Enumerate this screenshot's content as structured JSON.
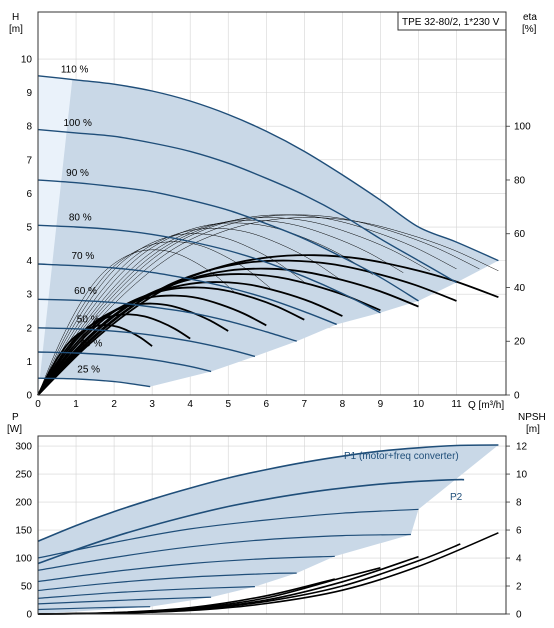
{
  "colors": {
    "curve": "#1f4e79",
    "area": "#c9d8e7",
    "area_light": "#eaf2fa",
    "eta": "#000000",
    "grid": "#d4d4d4",
    "axis": "#333333"
  },
  "chart_data": [
    {
      "type": "line",
      "title": "TPE 32-80/2, 1*230 V",
      "xlabel": "Q [m³/h]",
      "ylabel_left": [
        "H",
        "[m]"
      ],
      "ylabel_right": [
        "eta",
        "[%]"
      ],
      "xlim": [
        0,
        12.3
      ],
      "ylim": [
        0,
        11.4
      ],
      "xticks": [
        0,
        1,
        2,
        3,
        4,
        5,
        6,
        7,
        8,
        9,
        10,
        11
      ],
      "yticks": [
        0,
        1,
        2,
        3,
        4,
        5,
        6,
        7,
        8,
        9,
        10
      ],
      "yticks_right": [
        0,
        20,
        40,
        60,
        80,
        100
      ],
      "yticks_right_limit": [
        0,
        142.5
      ],
      "grid": true,
      "series": [
        {
          "name": "110 %",
          "x": [
            0,
            1,
            2,
            3,
            4,
            5,
            6,
            7,
            8,
            9,
            10,
            11,
            12.1
          ],
          "y": [
            9.5,
            9.38,
            9.25,
            9.05,
            8.75,
            8.35,
            7.85,
            7.25,
            6.55,
            5.8,
            5.0,
            4.55,
            4.0
          ]
        },
        {
          "name": "100 %",
          "x": [
            0,
            1,
            2,
            3,
            4,
            5,
            6,
            7,
            8,
            9,
            10,
            11
          ],
          "y": [
            7.9,
            7.8,
            7.7,
            7.5,
            7.25,
            6.9,
            6.45,
            5.95,
            5.35,
            4.65,
            4.0,
            3.35
          ]
        },
        {
          "name": "90 %",
          "x": [
            0,
            1,
            2,
            3,
            4,
            5,
            6,
            7,
            8,
            9,
            10
          ],
          "y": [
            6.4,
            6.32,
            6.2,
            6.05,
            5.8,
            5.5,
            5.1,
            4.65,
            4.1,
            3.5,
            2.8
          ]
        },
        {
          "name": "80 %",
          "x": [
            0,
            1,
            2,
            3,
            4,
            5,
            6,
            7,
            8,
            9
          ],
          "y": [
            5.05,
            5.0,
            4.92,
            4.78,
            4.57,
            4.3,
            3.95,
            3.52,
            3.02,
            2.45
          ]
        },
        {
          "name": "70 %",
          "x": [
            0,
            1,
            2,
            3,
            4,
            5,
            6,
            7,
            7.85
          ],
          "y": [
            3.9,
            3.85,
            3.78,
            3.65,
            3.45,
            3.2,
            2.88,
            2.48,
            2.1
          ]
        },
        {
          "name": "60 %",
          "x": [
            0,
            1,
            2,
            3,
            4,
            5,
            6,
            6.8
          ],
          "y": [
            2.85,
            2.82,
            2.75,
            2.62,
            2.45,
            2.2,
            1.88,
            1.6
          ]
        },
        {
          "name": "50 %",
          "x": [
            0,
            1,
            2,
            3,
            4,
            5,
            5.7
          ],
          "y": [
            2.0,
            1.97,
            1.9,
            1.78,
            1.6,
            1.36,
            1.15
          ]
        },
        {
          "name": "40 %",
          "x": [
            0,
            1,
            2,
            3,
            4,
            4.55
          ],
          "y": [
            1.28,
            1.25,
            1.18,
            1.05,
            0.85,
            0.7
          ]
        },
        {
          "name": "25 %",
          "x": [
            0,
            1,
            2,
            2.95
          ],
          "y": [
            0.5,
            0.48,
            0.4,
            0.25
          ]
        }
      ],
      "eta_curves": {
        "x_fraction": [
          0,
          0.1,
          0.2,
          0.3,
          0.4,
          0.5,
          0.6,
          0.7,
          0.8,
          0.9,
          1.0
        ],
        "eta_fraction": [
          0,
          0.33,
          0.6,
          0.8,
          0.92,
          0.985,
          1.0,
          0.975,
          0.91,
          0.82,
          0.7
        ],
        "curves": [
          {
            "qmax": 12.1,
            "eta_max": 66,
            "bold": false
          },
          {
            "qmax": 11.6,
            "eta_max": 67,
            "bold": false
          },
          {
            "qmax": 11.0,
            "eta_max": 67,
            "bold": false
          },
          {
            "qmax": 10.3,
            "eta_max": 66,
            "bold": false
          },
          {
            "qmax": 9.6,
            "eta_max": 65,
            "bold": false
          },
          {
            "qmax": 8.8,
            "eta_max": 64,
            "bold": false
          },
          {
            "qmax": 7.9,
            "eta_max": 62,
            "bold": false
          },
          {
            "qmax": 7.0,
            "eta_max": 60,
            "bold": false
          },
          {
            "qmax": 6.1,
            "eta_max": 57,
            "bold": false
          },
          {
            "qmax": 5.2,
            "eta_max": 54,
            "bold": false
          },
          {
            "qmax": 12.1,
            "eta_max": 52,
            "bold": true
          },
          {
            "qmax": 11.0,
            "eta_max": 50,
            "bold": true
          },
          {
            "qmax": 10.0,
            "eta_max": 47,
            "bold": true
          },
          {
            "qmax": 9.0,
            "eta_max": 45,
            "bold": true
          },
          {
            "qmax": 8.0,
            "eta_max": 42,
            "bold": true
          },
          {
            "qmax": 7.0,
            "eta_max": 40,
            "bold": true
          },
          {
            "qmax": 6.0,
            "eta_max": 37,
            "bold": true
          },
          {
            "qmax": 5.0,
            "eta_max": 34,
            "bold": true
          },
          {
            "qmax": 4.0,
            "eta_max": 30,
            "bold": true
          },
          {
            "qmax": 3.0,
            "eta_max": 26,
            "bold": true
          }
        ]
      }
    },
    {
      "type": "line",
      "xlim": [
        0,
        12.3
      ],
      "ylim": [
        0,
        318
      ],
      "ylabel_left": [
        "P",
        "[W]"
      ],
      "ylabel_right": [
        "NPSH",
        "[m]"
      ],
      "yticks": [
        0,
        50,
        100,
        150,
        200,
        250,
        300
      ],
      "yticks_right": [
        0,
        2,
        4,
        6,
        8,
        10,
        12
      ],
      "yticks_right_limit": [
        0,
        12.72
      ],
      "grid": true,
      "series": [
        {
          "name": "P1 (motor+freq converter)",
          "x": [
            0,
            1,
            2,
            3,
            4,
            5,
            6,
            7,
            8,
            9,
            10,
            11,
            12.1
          ],
          "y": [
            130,
            158,
            183,
            205,
            225,
            243,
            258,
            271,
            282,
            291,
            297,
            301,
            302
          ]
        },
        {
          "name": "P2",
          "x": [
            0,
            1,
            2,
            3,
            4,
            5,
            6,
            7,
            8,
            9,
            10,
            11,
            11.2
          ],
          "y": [
            90,
            115,
            138,
            158,
            176,
            192,
            205,
            216,
            225,
            232,
            237,
            240,
            240
          ]
        }
      ],
      "power_curves": [
        {
          "x": [
            0,
            2,
            4,
            6,
            8,
            10
          ],
          "y": [
            100,
            128,
            152,
            168,
            180,
            187
          ]
        },
        {
          "x": [
            0,
            2,
            4,
            6,
            8,
            9.8
          ],
          "y": [
            78,
            101,
            120,
            133,
            140,
            142
          ]
        },
        {
          "x": [
            0,
            2,
            4,
            6,
            7.8
          ],
          "y": [
            58,
            76,
            90,
            99,
            103
          ]
        },
        {
          "x": [
            0,
            2,
            4,
            6,
            6.8
          ],
          "y": [
            42,
            56,
            66,
            72,
            73
          ]
        },
        {
          "x": [
            0,
            2,
            4,
            5.7
          ],
          "y": [
            28,
            38,
            45,
            49
          ]
        },
        {
          "x": [
            0,
            2,
            4,
            4.55
          ],
          "y": [
            18,
            24,
            29,
            30
          ]
        },
        {
          "x": [
            0,
            1.5,
            2.95
          ],
          "y": [
            8,
            11,
            13
          ]
        }
      ],
      "npsh_curves": [
        {
          "x": [
            0,
            2,
            4,
            6,
            8,
            10,
            12.1
          ],
          "y": [
            0,
            0.06,
            0.25,
            0.75,
            1.7,
            3.4,
            5.8
          ]
        },
        {
          "x": [
            0,
            2,
            4,
            6,
            8,
            10,
            11.1
          ],
          "y": [
            0,
            0.06,
            0.3,
            0.9,
            2.0,
            3.8,
            5.0
          ]
        },
        {
          "x": [
            0,
            2,
            4,
            6,
            8,
            10.0
          ],
          "y": [
            0,
            0.08,
            0.35,
            1.0,
            2.3,
            4.1
          ]
        },
        {
          "x": [
            0,
            2,
            4,
            6,
            8,
            9.0
          ],
          "y": [
            0,
            0.08,
            0.4,
            1.15,
            2.6,
            3.3
          ]
        },
        {
          "x": [
            0,
            2,
            4,
            6,
            7.8
          ],
          "y": [
            0,
            0.1,
            0.45,
            1.3,
            2.5
          ]
        }
      ]
    }
  ]
}
